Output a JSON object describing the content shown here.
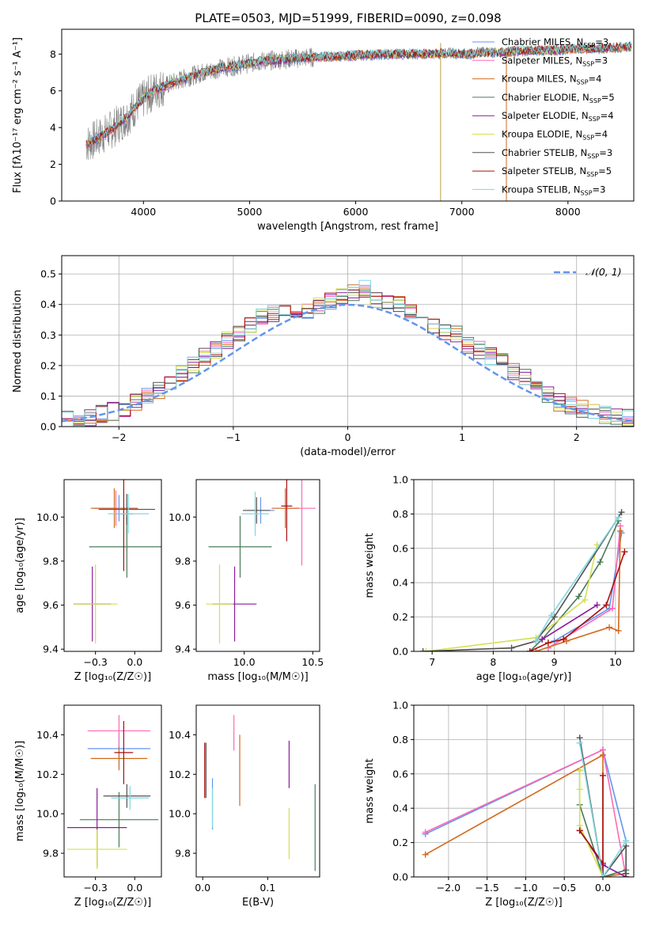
{
  "figure_title": "PLATE=0503, MJD=51999, FIBERID=0090, z=0.098",
  "colors": {
    "chabrier_miles": "#6495ed",
    "salpeter_miles": "#ff69b4",
    "kroupa_miles": "#d2691e",
    "chabrier_elodie": "#4a7a5a",
    "salpeter_elodie": "#8b1a9b",
    "kroupa_elodie": "#d4e050",
    "chabrier_stelib": "#505050",
    "salpeter_stelib": "#aa1010",
    "kroupa_stelib": "#80d8e0",
    "data": "#7f7f7f",
    "normal": "#6495ed",
    "grid": "#b0b0b0"
  },
  "chart_data": [
    {
      "type": "line",
      "title": "PLATE=0503, MJD=51999, FIBERID=0090, z=0.098",
      "xlabel": "wavelength [Angstrom, rest frame]",
      "ylabel": "Flux [fλ10⁻¹⁷ erg cm⁻² s⁻¹ A⁻¹]",
      "xlim": [
        3230,
        8620
      ],
      "ylim": [
        0,
        9.35
      ],
      "xticks": [
        4000,
        5000,
        6000,
        7000,
        8000
      ],
      "yticks": [
        0,
        2,
        4,
        6,
        8
      ],
      "grid": false,
      "legend_position": "right",
      "legend": [
        "Chabrier MILES, N_SSP=3",
        "Salpeter MILES, N_SSP=3",
        "Kroupa MILES, N_SSP=4",
        "Chabrier ELODIE, N_SSP=5",
        "Salpeter ELODIE, N_SSP=4",
        "Kroupa ELODIE, N_SSP=4",
        "Chabrier STELIB, N_SSP=3",
        "Salpeter STELIB, N_SSP=5",
        "Kroupa STELIB, N_SSP=3"
      ],
      "model_continuum": {
        "x": [
          3460,
          3560,
          3700,
          3850,
          3950,
          4100,
          4300,
          4500,
          4700,
          4900,
          5100,
          5300,
          5500,
          5700,
          5900,
          6100,
          6300,
          6500,
          6700,
          6900,
          7100,
          7200,
          7300,
          7400,
          7500,
          7700,
          7900,
          8100,
          8300,
          8600
        ],
        "y": [
          3.1,
          3.4,
          3.9,
          4.6,
          5.3,
          6.0,
          6.5,
          6.9,
          7.2,
          7.4,
          7.6,
          7.7,
          7.8,
          7.85,
          7.9,
          7.95,
          8.0,
          8.0,
          8.0,
          8.05,
          8.0,
          8.1,
          8.05,
          8.1,
          8.15,
          8.2,
          8.2,
          8.3,
          8.3,
          8.4
        ]
      }
    },
    {
      "type": "line",
      "xlabel": "(data-model)/error",
      "ylabel": "Normed distribution",
      "xlim": [
        -2.5,
        2.5
      ],
      "ylim": [
        0,
        0.56
      ],
      "xticks": [
        -2,
        -1,
        0,
        1,
        2
      ],
      "yticks": [
        0.0,
        0.1,
        0.2,
        0.3,
        0.4,
        0.5
      ],
      "grid": true,
      "legend_position": "top-right",
      "legend": [
        "𝒩(0, 1)"
      ],
      "hist_bins": [
        -2.5,
        2.5,
        50
      ],
      "hist_values": [
        0.02,
        0.025,
        0.03,
        0.04,
        0.05,
        0.06,
        0.08,
        0.1,
        0.12,
        0.14,
        0.17,
        0.2,
        0.23,
        0.25,
        0.28,
        0.3,
        0.33,
        0.36,
        0.37,
        0.39,
        0.38,
        0.38,
        0.4,
        0.41,
        0.43,
        0.44,
        0.45,
        0.42,
        0.41,
        0.4,
        0.38,
        0.35,
        0.33,
        0.31,
        0.3,
        0.27,
        0.25,
        0.23,
        0.21,
        0.18,
        0.16,
        0.13,
        0.1,
        0.08,
        0.07,
        0.06,
        0.05,
        0.04,
        0.035,
        0.03
      ]
    },
    {
      "type": "scatter",
      "xlabel": "Z [log₁₀(Z/Z☉)]",
      "ylabel": "age  [log₁₀(age/yr)]",
      "xlim": [
        -0.45,
        0.17
      ],
      "ylim": [
        9.39,
        10.17
      ],
      "xticks": [
        -0.25,
        0.0
      ],
      "yticks": [
        9.4,
        9.6,
        9.8,
        10.0
      ],
      "grid": false,
      "series": [
        {
          "name": "Chabrier MILES",
          "x": -0.1,
          "y": 10.04,
          "xerr": 0.12,
          "yerr": 0.06
        },
        {
          "name": "Salpeter MILES",
          "x": -0.12,
          "y": 10.04,
          "xerr": 0.14,
          "yerr": 0.08
        },
        {
          "name": "Kroupa MILES",
          "x": -0.13,
          "y": 10.04,
          "xerr": 0.15,
          "yerr": 0.09
        },
        {
          "name": "Chabrier ELODIE",
          "x": -0.05,
          "y": 9.865,
          "xerr": 0.24,
          "yerr": 0.14
        },
        {
          "name": "Salpeter ELODIE",
          "x": -0.27,
          "y": 9.605,
          "xerr": 0.12,
          "yerr": 0.17
        },
        {
          "name": "Kroupa ELODIE",
          "x": -0.25,
          "y": 9.605,
          "xerr": 0.14,
          "yerr": 0.18
        },
        {
          "name": "Chabrier STELIB",
          "x": -0.05,
          "y": 10.035,
          "xerr": 0.18,
          "yerr": 0.07
        },
        {
          "name": "Salpeter STELIB",
          "x": -0.07,
          "y": 10.015,
          "xerr": 0.06,
          "yerr": 0.26
        },
        {
          "name": "Kroupa STELIB",
          "x": -0.04,
          "y": 10.015,
          "xerr": 0.13,
          "yerr": 0.09
        }
      ]
    },
    {
      "type": "scatter",
      "xlabel": "mass [log₁₀(M/M☉)]",
      "ylabel": "",
      "xlim": [
        9.65,
        10.55
      ],
      "ylim": [
        9.39,
        10.17
      ],
      "xticks": [
        10.0,
        10.5
      ],
      "yticks": [
        9.4,
        9.6,
        9.8,
        10.0
      ],
      "grid": false,
      "series": [
        {
          "name": "Chabrier MILES",
          "x": 10.12,
          "y": 10.03,
          "xerr": 0.1,
          "yerr": 0.06
        },
        {
          "name": "Salpeter MILES",
          "x": 10.42,
          "y": 10.04,
          "xerr": 0.1,
          "yerr": 0.26
        },
        {
          "name": "Kroupa MILES",
          "x": 10.3,
          "y": 10.04,
          "xerr": 0.1,
          "yerr": 0.09
        },
        {
          "name": "Chabrier ELODIE",
          "x": 9.97,
          "y": 9.865,
          "xerr": 0.23,
          "yerr": 0.14
        },
        {
          "name": "Salpeter ELODIE",
          "x": 9.93,
          "y": 9.605,
          "xerr": 0.16,
          "yerr": 0.17
        },
        {
          "name": "Kroupa ELODIE",
          "x": 9.82,
          "y": 9.605,
          "xerr": 0.1,
          "yerr": 0.18
        },
        {
          "name": "Chabrier STELIB",
          "x": 10.09,
          "y": 10.03,
          "xerr": 0.1,
          "yerr": 0.06
        },
        {
          "name": "Salpeter STELIB",
          "x": 10.31,
          "y": 10.05,
          "xerr": 0.04,
          "yerr": 0.16
        },
        {
          "name": "Kroupa STELIB",
          "x": 10.08,
          "y": 10.015,
          "xerr": 0.1,
          "yerr": 0.1
        }
      ]
    },
    {
      "type": "line",
      "xlabel": "age  [log₁₀(age/yr)]",
      "ylabel": "mass weight",
      "xlim": [
        6.7,
        10.3
      ],
      "ylim": [
        0,
        1.0
      ],
      "xticks": [
        7,
        8,
        9,
        10
      ],
      "yticks": [
        0.0,
        0.2,
        0.4,
        0.6,
        0.8,
        1.0
      ],
      "grid": true,
      "series": [
        {
          "name": "Chabrier MILES",
          "x": [
            9.0,
            9.9,
            10.1
          ],
          "y": [
            0.06,
            0.25,
            0.69
          ]
        },
        {
          "name": "Salpeter MILES",
          "x": [
            8.9,
            9.95,
            10.08
          ],
          "y": [
            0.02,
            0.25,
            0.73
          ]
        },
        {
          "name": "Kroupa MILES",
          "x": [
            8.7,
            9.2,
            9.9,
            10.05,
            10.08
          ],
          "y": [
            0.0,
            0.06,
            0.14,
            0.12,
            0.7
          ]
        },
        {
          "name": "Chabrier ELODIE",
          "x": [
            8.6,
            8.8,
            9.4,
            9.75,
            10.05
          ],
          "y": [
            0.0,
            0.07,
            0.32,
            0.52,
            0.76
          ]
        },
        {
          "name": "Salpeter ELODIE",
          "x": [
            8.8,
            9.7
          ],
          "y": [
            0.07,
            0.27
          ]
        },
        {
          "name": "Kroupa ELODIE",
          "x": [
            6.9,
            8.7,
            9.5,
            9.7
          ],
          "y": [
            0.0,
            0.08,
            0.3,
            0.62
          ]
        },
        {
          "name": "Chabrier STELIB",
          "x": [
            6.85,
            8.3,
            8.7,
            9.0,
            10.1
          ],
          "y": [
            0.0,
            0.02,
            0.06,
            0.2,
            0.81
          ]
        },
        {
          "name": "Salpeter STELIB",
          "x": [
            8.6,
            8.9,
            9.15,
            9.85,
            10.15
          ],
          "y": [
            0.0,
            0.05,
            0.07,
            0.27,
            0.58
          ]
        },
        {
          "name": "Kroupa STELIB",
          "x": [
            8.7,
            8.95,
            10.05
          ],
          "y": [
            0.06,
            0.21,
            0.78
          ]
        }
      ]
    },
    {
      "type": "scatter",
      "xlabel": "Z [log₁₀(Z/Z☉)]",
      "ylabel": "mass [log₁₀(M/M☉)]",
      "xlim": [
        -0.45,
        0.17
      ],
      "ylim": [
        9.68,
        10.55
      ],
      "xticks": [
        -0.25,
        0.0
      ],
      "yticks": [
        9.8,
        10.0,
        10.2,
        10.4
      ],
      "grid": false,
      "series": [
        {
          "name": "Chabrier MILES",
          "x": -0.1,
          "y": 10.33,
          "xerr": 0.2,
          "yerr": 0.08
        },
        {
          "name": "Salpeter MILES",
          "x": -0.1,
          "y": 10.42,
          "xerr": 0.2,
          "yerr": 0.08
        },
        {
          "name": "Kroupa MILES",
          "x": -0.1,
          "y": 10.28,
          "xerr": 0.18,
          "yerr": 0.06
        },
        {
          "name": "Chabrier ELODIE",
          "x": -0.1,
          "y": 9.97,
          "xerr": 0.25,
          "yerr": 0.14
        },
        {
          "name": "Salpeter ELODIE",
          "x": -0.24,
          "y": 9.93,
          "xerr": 0.19,
          "yerr": 0.2
        },
        {
          "name": "Kroupa ELODIE",
          "x": -0.24,
          "y": 9.82,
          "xerr": 0.19,
          "yerr": 0.1
        },
        {
          "name": "Chabrier STELIB",
          "x": -0.05,
          "y": 10.09,
          "xerr": 0.15,
          "yerr": 0.06
        },
        {
          "name": "Salpeter STELIB",
          "x": -0.07,
          "y": 10.31,
          "xerr": 0.06,
          "yerr": 0.16
        },
        {
          "name": "Kroupa STELIB",
          "x": -0.03,
          "y": 10.08,
          "xerr": 0.12,
          "yerr": 0.06
        }
      ]
    },
    {
      "type": "scatter",
      "xlabel": "E(B-V)",
      "ylabel": "",
      "xlim": [
        -0.01,
        0.18
      ],
      "ylim": [
        9.68,
        10.55
      ],
      "xticks": [
        0.0,
        0.1
      ],
      "yticks": [
        9.8,
        10.0,
        10.2,
        10.4
      ],
      "grid": false,
      "series": [
        {
          "name": "Chabrier MILES",
          "x": 0.015,
          "y": 10.05,
          "yerr": 0.13
        },
        {
          "name": "Salpeter MILES",
          "x": 0.048,
          "y": 10.41,
          "yerr": 0.09
        },
        {
          "name": "Kroupa MILES",
          "x": 0.057,
          "y": 10.22,
          "yerr": 0.18
        },
        {
          "name": "Chabrier ELODIE",
          "x": 0.173,
          "y": 9.93,
          "yerr": 0.22
        },
        {
          "name": "Salpeter ELODIE",
          "x": 0.133,
          "y": 10.25,
          "yerr": 0.12
        },
        {
          "name": "Kroupa ELODIE",
          "x": 0.133,
          "y": 9.9,
          "yerr": 0.13
        },
        {
          "name": "Chabrier STELIB",
          "x": 0.005,
          "y": 10.22,
          "yerr": 0.14
        },
        {
          "name": "Salpeter STELIB",
          "x": 0.003,
          "y": 10.22,
          "yerr": 0.14
        },
        {
          "name": "Kroupa STELIB",
          "x": 0.015,
          "y": 10.03,
          "yerr": 0.1
        }
      ]
    },
    {
      "type": "line",
      "xlabel": "Z [log₁₀(Z/Z☉)]",
      "ylabel": "mass weight",
      "xlim": [
        -2.45,
        0.4
      ],
      "ylim": [
        0,
        1.0
      ],
      "xticks": [
        -2.0,
        -1.5,
        -1.0,
        -0.5,
        0.0
      ],
      "yticks": [
        0.0,
        0.2,
        0.4,
        0.6,
        0.8,
        1.0
      ],
      "grid": true,
      "series": [
        {
          "name": "Chabrier MILES",
          "x": [
            -2.3,
            0.0,
            0.3
          ],
          "y": [
            0.25,
            0.74,
            0.21
          ]
        },
        {
          "name": "Salpeter MILES",
          "x": [
            -2.3,
            0.0,
            0.3
          ],
          "y": [
            0.26,
            0.74,
            0.0
          ]
        },
        {
          "name": "Kroupa MILES",
          "x": [
            -2.3,
            0.0,
            0.0,
            0.3
          ],
          "y": [
            0.13,
            0.71,
            0.0,
            0.02
          ]
        },
        {
          "name": "Chabrier ELODIE",
          "x": [
            -0.3,
            -0.3,
            0.0,
            0.3,
            0.3
          ],
          "y": [
            0.62,
            0.42,
            0.0,
            0.04,
            0.0
          ]
        },
        {
          "name": "Salpeter ELODIE",
          "x": [
            -0.3,
            0.0,
            0.3
          ],
          "y": [
            0.27,
            0.07,
            0.0
          ]
        },
        {
          "name": "Kroupa ELODIE",
          "x": [
            -0.3,
            -0.3,
            -0.3,
            0.0
          ],
          "y": [
            0.62,
            0.51,
            0.3,
            0.0
          ]
        },
        {
          "name": "Chabrier STELIB",
          "x": [
            -0.3,
            0.0,
            0.3,
            0.3
          ],
          "y": [
            0.81,
            0.0,
            0.18,
            0.02
          ]
        },
        {
          "name": "Salpeter STELIB",
          "x": [
            -0.3,
            0.0,
            0.0,
            0.0
          ],
          "y": [
            0.27,
            0.08,
            0.59,
            0.0
          ]
        },
        {
          "name": "Kroupa STELIB",
          "x": [
            -0.3,
            0.0,
            0.3
          ],
          "y": [
            0.78,
            0.0,
            0.21
          ]
        }
      ]
    }
  ]
}
